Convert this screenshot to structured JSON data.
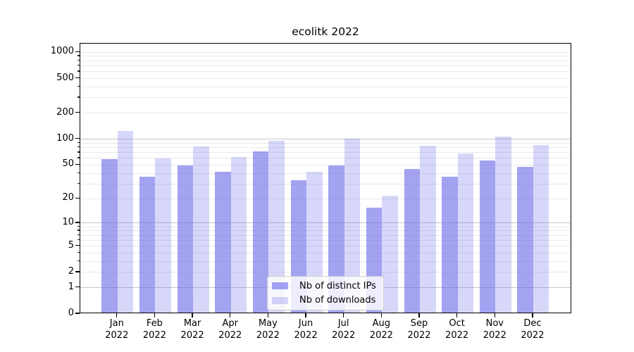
{
  "chart_data": {
    "type": "bar",
    "title": "ecolitk 2022",
    "categories": [
      "Jan",
      "Feb",
      "Mar",
      "Apr",
      "May",
      "Jun",
      "Jul",
      "Aug",
      "Sep",
      "Oct",
      "Nov",
      "Dec"
    ],
    "x_year_line": "2022",
    "series": [
      {
        "name": "Nb of distinct IPs",
        "key": "distinct-ips",
        "color": "#a4a4f2",
        "color_rgba": "rgba(110,110,235,0.63)",
        "values": [
          57,
          35,
          48,
          40,
          69,
          32,
          48,
          15,
          43,
          35,
          54,
          46
        ]
      },
      {
        "name": "Nb of downloads",
        "key": "downloads",
        "color": "#d7d7f9",
        "color_rgba": "rgba(110,110,235,0.28)",
        "values": [
          120,
          58,
          79,
          60,
          93,
          40,
          98,
          21,
          81,
          66,
          103,
          82
        ]
      }
    ],
    "yscale": "log1p",
    "ylim": [
      0,
      1258
    ],
    "yticks": [
      0,
      1,
      2,
      5,
      10,
      20,
      50,
      100,
      200,
      500,
      1000
    ],
    "major_gridlines": [
      1,
      10,
      100
    ],
    "labeled_gridlines": [
      2,
      5,
      20,
      50,
      200,
      500,
      1000
    ],
    "minor_gridlines": [
      3,
      4,
      6,
      7,
      8,
      9,
      30,
      40,
      60,
      70,
      80,
      90,
      300,
      400,
      600,
      700,
      800,
      900
    ],
    "grid": true,
    "legend_position": "lower-center",
    "axis_color": "#000000",
    "background_color": "#ffffff"
  }
}
